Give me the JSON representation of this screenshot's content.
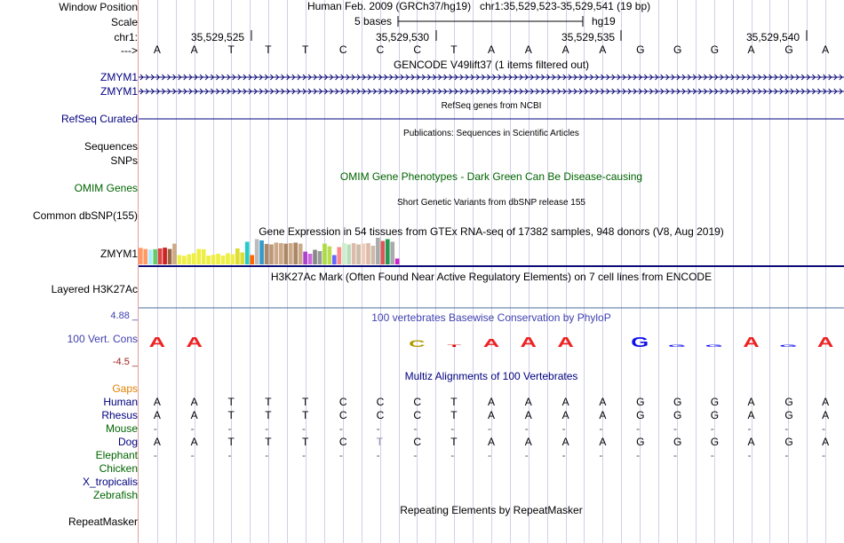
{
  "colors": {
    "label_blue": "#000080",
    "label_green": "#006400",
    "gaps_orange": "#e08000",
    "cons_blue": "#4040b0",
    "cons_red": "#a02020",
    "track_dark": "#0c0c78",
    "grid": "#d0d0e8",
    "separator": "#e0a0a0"
  },
  "header": {
    "window_position_label": "Window Position",
    "scale_label": "Scale",
    "chrom_label": "chr1:",
    "arrow_label": "--->",
    "assembly": "Human Feb. 2009 (GRCh37/hg19)",
    "position": "chr1:35,529,523-35,529,541 (19 bp)",
    "scale_text": "5 bases",
    "scale_db": "hg19",
    "coords": [
      "35,529,525",
      "35,529,530",
      "35,529,535",
      "35,529,540"
    ]
  },
  "sequence": [
    "A",
    "A",
    "T",
    "T",
    "T",
    "C",
    "C",
    "C",
    "T",
    "A",
    "A",
    "A",
    "A",
    "G",
    "G",
    "G",
    "A",
    "G",
    "A"
  ],
  "gencode": {
    "title": "GENCODE V49lift37 (1 items filtered out)",
    "genes": [
      "ZMYM1",
      "ZMYM1"
    ]
  },
  "refseq": {
    "label": "RefSeq Curated",
    "title": "RefSeq genes from NCBI"
  },
  "publications": {
    "label": "Sequences",
    "title": "Publications: Sequences in Scientific Articles"
  },
  "snps_label": "SNPs",
  "omim": {
    "label": "OMIM Genes",
    "title": "OMIM Gene Phenotypes - Dark Green Can Be Disease-causing"
  },
  "dbsnp": {
    "label": "Common dbSNP(155)",
    "title": "Short Genetic Variants from dbSNP release 155"
  },
  "gtex": {
    "label": "ZMYM1",
    "title": "Gene Expression in 54 tissues from GTEx RNA-seq of 17382 samples, 948 donors (V8, Aug 2019)",
    "bars": [
      {
        "h": 0.62,
        "c": "#ff9966"
      },
      {
        "h": 0.58,
        "c": "#ff9966"
      },
      {
        "h": 0.55,
        "c": "#aaeeff"
      },
      {
        "h": 0.57,
        "c": "#66cc66"
      },
      {
        "h": 0.6,
        "c": "#dd4444"
      },
      {
        "h": 0.63,
        "c": "#cc2222"
      },
      {
        "h": 0.58,
        "c": "#996644"
      },
      {
        "h": 0.78,
        "c": "#ccaa88"
      },
      {
        "h": 0.35,
        "c": "#eeee44"
      },
      {
        "h": 0.32,
        "c": "#eeee44"
      },
      {
        "h": 0.38,
        "c": "#eeee44"
      },
      {
        "h": 0.42,
        "c": "#eeee44"
      },
      {
        "h": 0.58,
        "c": "#eeee44"
      },
      {
        "h": 0.57,
        "c": "#eeee44"
      },
      {
        "h": 0.33,
        "c": "#eeee44"
      },
      {
        "h": 0.36,
        "c": "#eeee44"
      },
      {
        "h": 0.4,
        "c": "#eeee44"
      },
      {
        "h": 0.33,
        "c": "#eeee44"
      },
      {
        "h": 0.42,
        "c": "#eeee44"
      },
      {
        "h": 0.38,
        "c": "#eeee44"
      },
      {
        "h": 0.6,
        "c": "#dddd33"
      },
      {
        "h": 0.45,
        "c": "#dddd33"
      },
      {
        "h": 0.85,
        "c": "#22cccc"
      },
      {
        "h": 0.35,
        "c": "#ff6600"
      },
      {
        "h": 0.95,
        "c": "#bbbbbb"
      },
      {
        "h": 0.9,
        "c": "#3399cc"
      },
      {
        "h": 0.77,
        "c": "#aa8866"
      },
      {
        "h": 0.75,
        "c": "#bb9977"
      },
      {
        "h": 0.82,
        "c": "#ccaa88"
      },
      {
        "h": 0.8,
        "c": "#ccaa88"
      },
      {
        "h": 0.78,
        "c": "#aa8866"
      },
      {
        "h": 0.8,
        "c": "#ccaa88"
      },
      {
        "h": 0.82,
        "c": "#aa8866"
      },
      {
        "h": 0.78,
        "c": "#ccaa88"
      },
      {
        "h": 0.48,
        "c": "#aa44cc"
      },
      {
        "h": 0.4,
        "c": "#cc66dd"
      },
      {
        "h": 0.55,
        "c": "#888888"
      },
      {
        "h": 0.5,
        "c": "#999999"
      },
      {
        "h": 0.78,
        "c": "#aadd44"
      },
      {
        "h": 0.68,
        "c": "#bbdd55"
      },
      {
        "h": 0.35,
        "c": "#6666ff"
      },
      {
        "h": 0.65,
        "c": "#ff8888"
      },
      {
        "h": 0.8,
        "c": "#cceecc"
      },
      {
        "h": 0.75,
        "c": "#bbddbb"
      },
      {
        "h": 0.8,
        "c": "#ddbbaa"
      },
      {
        "h": 0.75,
        "c": "#ccbbaa"
      },
      {
        "h": 0.78,
        "c": "#eeccbb"
      },
      {
        "h": 0.8,
        "c": "#ddbbaa"
      },
      {
        "h": 0.7,
        "c": "#ccbbaa"
      },
      {
        "h": 1.0,
        "c": "#aaaaaa"
      },
      {
        "h": 0.88,
        "c": "#dd5555"
      },
      {
        "h": 0.95,
        "c": "#229955"
      },
      {
        "h": 0.85,
        "c": "#aaaaaa"
      },
      {
        "h": 0.22,
        "c": "#cc22cc"
      }
    ]
  },
  "h3k27ac": {
    "label": "Layered H3K27Ac",
    "title": "H3K27Ac Mark (Often Found Near Active Regulatory Elements) on 7 cell lines from ENCODE"
  },
  "conservation": {
    "label": "100 Vert. Cons",
    "max": "4.88 _",
    "min": "-4.5 _",
    "title": "100 vertebrates Basewise Conservation by PhyloP",
    "logo": [
      {
        "b": "A",
        "s": 1.0
      },
      {
        "b": "A",
        "s": 1.0
      },
      {
        "b": "",
        "s": 0
      },
      {
        "b": "",
        "s": 0
      },
      {
        "b": "",
        "s": 0
      },
      {
        "b": "",
        "s": 0
      },
      {
        "b": "",
        "s": 0
      },
      {
        "b": "C",
        "s": 0.7
      },
      {
        "b": "T",
        "s": 0.2
      },
      {
        "b": "A",
        "s": 0.8
      },
      {
        "b": "A",
        "s": 1.0
      },
      {
        "b": "A",
        "s": 1.0
      },
      {
        "b": "",
        "s": 0
      },
      {
        "b": "G",
        "s": 1.0
      },
      {
        "b": "G",
        "s": 0.2
      },
      {
        "b": "G",
        "s": 0.25
      },
      {
        "b": "A",
        "s": 1.0
      },
      {
        "b": "G",
        "s": 0.2
      },
      {
        "b": "A",
        "s": 1.0
      }
    ]
  },
  "multiz": {
    "title": "Multiz Alignments of 100 Vertebrates",
    "gaps_label": "Gaps",
    "species": [
      {
        "name": "Human",
        "color": "#000080",
        "seq": [
          "A",
          "A",
          "T",
          "T",
          "T",
          "C",
          "C",
          "C",
          "T",
          "A",
          "A",
          "A",
          "A",
          "G",
          "G",
          "G",
          "A",
          "G",
          "A"
        ]
      },
      {
        "name": "Rhesus",
        "color": "#000080",
        "seq": [
          "A",
          "A",
          "T",
          "T",
          "T",
          "C",
          "C",
          "C",
          "T",
          "A",
          "A",
          "A",
          "A",
          "G",
          "G",
          "G",
          "A",
          "G",
          "A"
        ]
      },
      {
        "name": "Mouse",
        "color": "#006400",
        "seq": [
          "-",
          "-",
          "-",
          "-",
          "-",
          "-",
          "-",
          "-",
          "-",
          "-",
          "-",
          "-",
          "-",
          "-",
          "-",
          "-",
          "-",
          "-",
          "-"
        ]
      },
      {
        "name": "Dog",
        "color": "#000080",
        "seq": [
          "A",
          "A",
          "T",
          "T",
          "T",
          "C",
          "T",
          "C",
          "T",
          "A",
          "A",
          "A",
          "A",
          "G",
          "G",
          "G",
          "A",
          "G",
          "A"
        ]
      },
      {
        "name": "Elephant",
        "color": "#006400",
        "seq": [
          "-",
          "-",
          "-",
          "-",
          "-",
          "-",
          "-",
          "-",
          "-",
          "-",
          "-",
          "-",
          "-",
          "-",
          "-",
          "-",
          "-",
          "-",
          "-"
        ]
      },
      {
        "name": "Chicken",
        "color": "#006400",
        "seq": []
      },
      {
        "name": "X_tropicalis",
        "color": "#000080",
        "seq": []
      },
      {
        "name": "Zebrafish",
        "color": "#006400",
        "seq": []
      }
    ]
  },
  "repeatmasker": {
    "label": "RepeatMasker",
    "title": "Repeating Elements by RepeatMasker"
  }
}
